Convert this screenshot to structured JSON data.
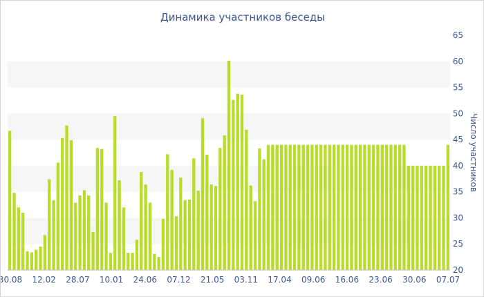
{
  "chart_data": {
    "type": "bar",
    "title": "Динамика участников беседы",
    "xlabel": "",
    "ylabel": "Число участников",
    "ylim": [
      20,
      65
    ],
    "y_ticks": [
      20,
      25,
      30,
      35,
      40,
      45,
      50,
      55,
      60,
      65
    ],
    "y_axis_side": "right",
    "grid": "alternating horizontal bands",
    "x_tick_labels": [
      "30.08",
      "12.02",
      "28.07",
      "10.01",
      "24.06",
      "07.12",
      "21.05",
      "03.11",
      "17.04",
      "09.06",
      "16.06",
      "23.06",
      "30.06",
      "07.07"
    ],
    "colors": {
      "bar": "#b8dc2c",
      "text": "#3e5590",
      "band": "#f6f6f6"
    },
    "values": [
      46.7,
      34.8,
      32,
      31,
      23.6,
      23.4,
      23.9,
      24.5,
      26.7,
      37.4,
      33.4,
      40.6,
      45.3,
      47.7,
      44.9,
      32.9,
      34.3,
      35.3,
      34.3,
      27.3,
      43.4,
      43.2,
      32.9,
      23.3,
      49.5,
      37.2,
      32,
      23.3,
      23.3,
      25.8,
      38.8,
      36.4,
      32.9,
      23.1,
      22.5,
      29.8,
      42.2,
      39.2,
      30.3,
      37.7,
      33.4,
      33.5,
      41.4,
      35.2,
      49.1,
      42.1,
      36.4,
      36.1,
      43.4,
      45.8,
      60.1,
      52.6,
      53.8,
      53.6,
      46.9,
      36.2,
      33.2,
      43.3,
      41.2,
      44,
      44,
      44,
      44,
      44,
      44,
      44,
      44,
      44,
      44,
      44,
      44,
      44,
      44,
      44,
      44,
      44,
      44,
      44,
      44,
      44,
      44,
      44,
      44,
      44,
      44,
      44,
      44,
      44,
      44,
      44,
      44,
      40,
      40,
      40,
      40,
      40,
      40,
      40,
      40,
      40,
      44
    ]
  }
}
